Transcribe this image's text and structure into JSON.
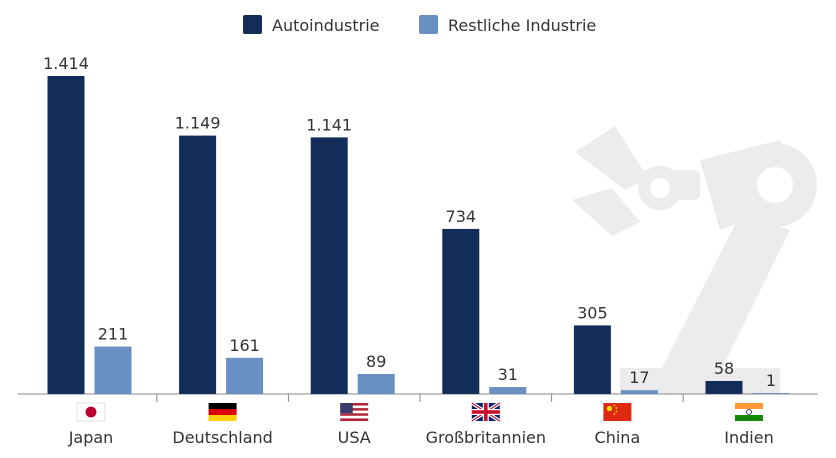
{
  "chart_data": {
    "type": "bar",
    "categories": [
      "Japan",
      "Deutschland",
      "USA",
      "Großbritannien",
      "China",
      "Indien"
    ],
    "series": [
      {
        "name": "Autoindustrie",
        "values": [
          1414,
          1149,
          1141,
          734,
          305,
          58
        ],
        "labels": [
          "1.414",
          "1.149",
          "1.141",
          "734",
          "305",
          "58"
        ]
      },
      {
        "name": "Restliche Industrie",
        "values": [
          211,
          161,
          89,
          31,
          17,
          1
        ],
        "labels": [
          "211",
          "161",
          "89",
          "31",
          "17",
          "1"
        ]
      }
    ],
    "ylim": [
      0,
      1414
    ],
    "grid": false,
    "legend_position": "top-center",
    "colors": {
      "Autoindustrie": "#132d5a",
      "Restliche Industrie": "#6a8fc2",
      "watermark": "#ececec",
      "axis": "#888888"
    },
    "category_icons": [
      "flag-japan-icon",
      "flag-germany-icon",
      "flag-usa-icon",
      "flag-uk-icon",
      "flag-china-icon",
      "flag-india-icon"
    ]
  }
}
